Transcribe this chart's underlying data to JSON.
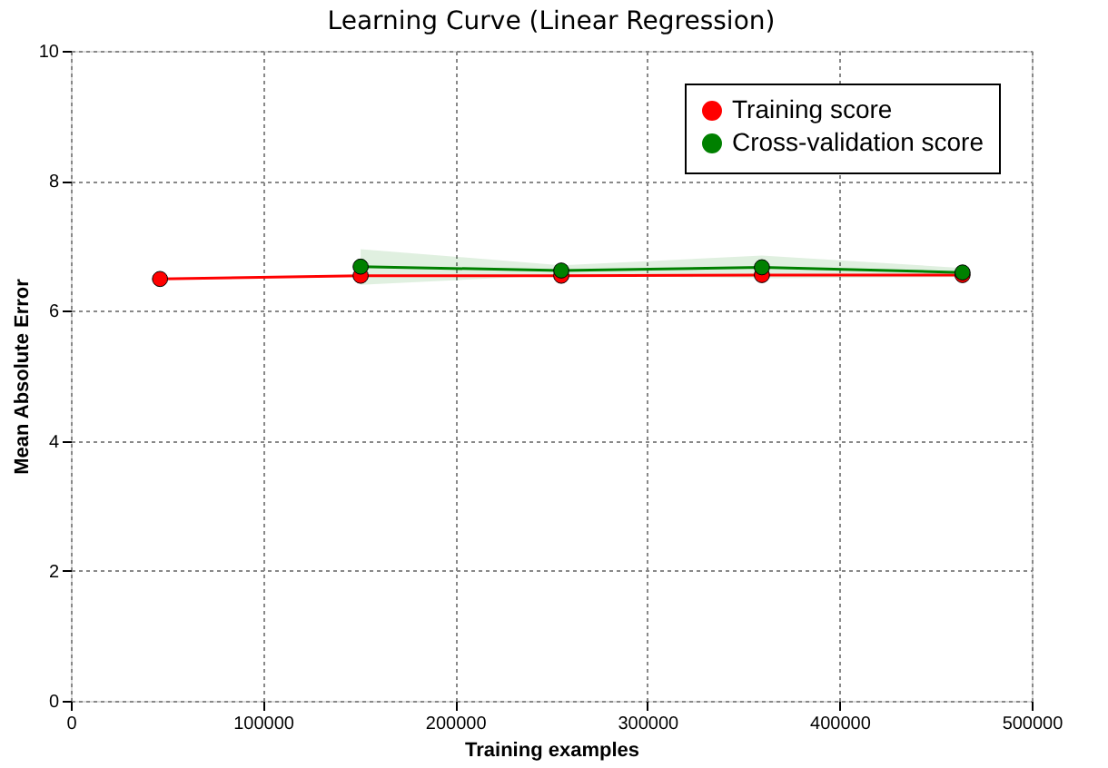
{
  "chart_data": {
    "type": "line",
    "title": "Learning Curve (Linear Regression)",
    "xlabel": "Training examples",
    "ylabel": "Mean Absolute Error",
    "x": [
      46400,
      150800,
      255200,
      359600,
      464000
    ],
    "series": [
      {
        "name": "Training score",
        "color": "#ff0000",
        "values": [
          6.49,
          6.54,
          6.54,
          6.55,
          6.55
        ]
      },
      {
        "name": "Cross-validation score",
        "color": "#008000",
        "values": [
          null,
          6.68,
          6.62,
          6.67,
          6.59
        ],
        "lower": [
          null,
          6.4,
          6.55,
          6.5,
          6.52
        ],
        "upper": [
          null,
          6.95,
          6.7,
          6.85,
          6.66
        ]
      }
    ],
    "xlim": [
      0,
      500000
    ],
    "xticks": [
      0,
      100000,
      200000,
      300000,
      400000,
      500000
    ],
    "ylim": [
      0,
      10
    ],
    "yticks": [
      0,
      2,
      4,
      6,
      8,
      10
    ],
    "grid": true,
    "legend": "top right",
    "marker": "circle",
    "line_style": "solid"
  }
}
